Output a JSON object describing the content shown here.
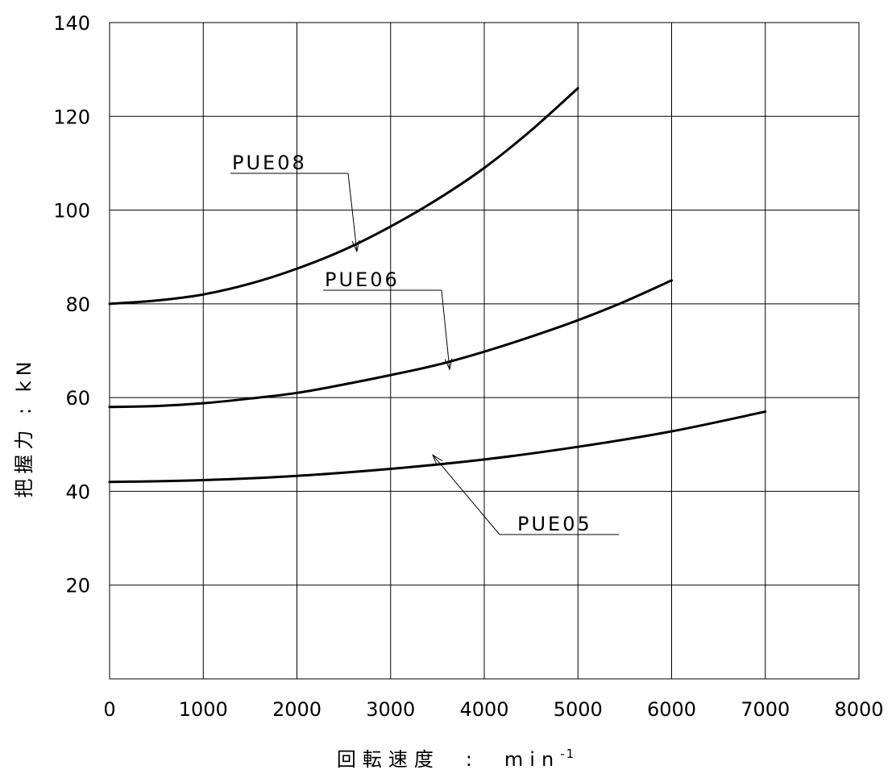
{
  "chart_data": {
    "type": "line",
    "xlabel": "回転速度　:　min⁻¹",
    "xlabel_main": "回転速度　:　min",
    "xlabel_sup": "-1",
    "ylabel": "把握力 : kN",
    "xlim": [
      0,
      8000
    ],
    "ylim": [
      0,
      140
    ],
    "x_ticks": [
      "0",
      "1000",
      "2000",
      "3000",
      "4000",
      "5000",
      "6000",
      "7000",
      "8000"
    ],
    "y_ticks": [
      "20",
      "40",
      "60",
      "80",
      "100",
      "120",
      "140"
    ],
    "grid": true,
    "series": [
      {
        "name": "PUE08",
        "x": [
          0,
          500,
          1000,
          1500,
          2000,
          2500,
          3000,
          3500,
          4000,
          4500,
          5000
        ],
        "y": [
          80,
          80.7,
          82,
          84.3,
          87.5,
          91.5,
          96.5,
          102.3,
          109,
          117,
          126
        ]
      },
      {
        "name": "PUE06",
        "x": [
          0,
          500,
          1000,
          1500,
          2000,
          2500,
          3000,
          3500,
          4000,
          4500,
          5000,
          5500,
          6000
        ],
        "y": [
          58,
          58.2,
          58.8,
          59.8,
          61,
          62.8,
          64.8,
          67,
          69.8,
          73,
          76.5,
          80.5,
          85
        ]
      },
      {
        "name": "PUE05",
        "x": [
          0,
          1000,
          2000,
          3000,
          4000,
          5000,
          6000,
          7000
        ],
        "y": [
          42,
          42.4,
          43.3,
          44.8,
          46.8,
          49.5,
          52.8,
          57
        ]
      }
    ],
    "annotations": [
      {
        "text": "PUE08",
        "series": 0
      },
      {
        "text": "PUE06",
        "series": 1
      },
      {
        "text": "PUE05",
        "series": 2
      }
    ]
  }
}
